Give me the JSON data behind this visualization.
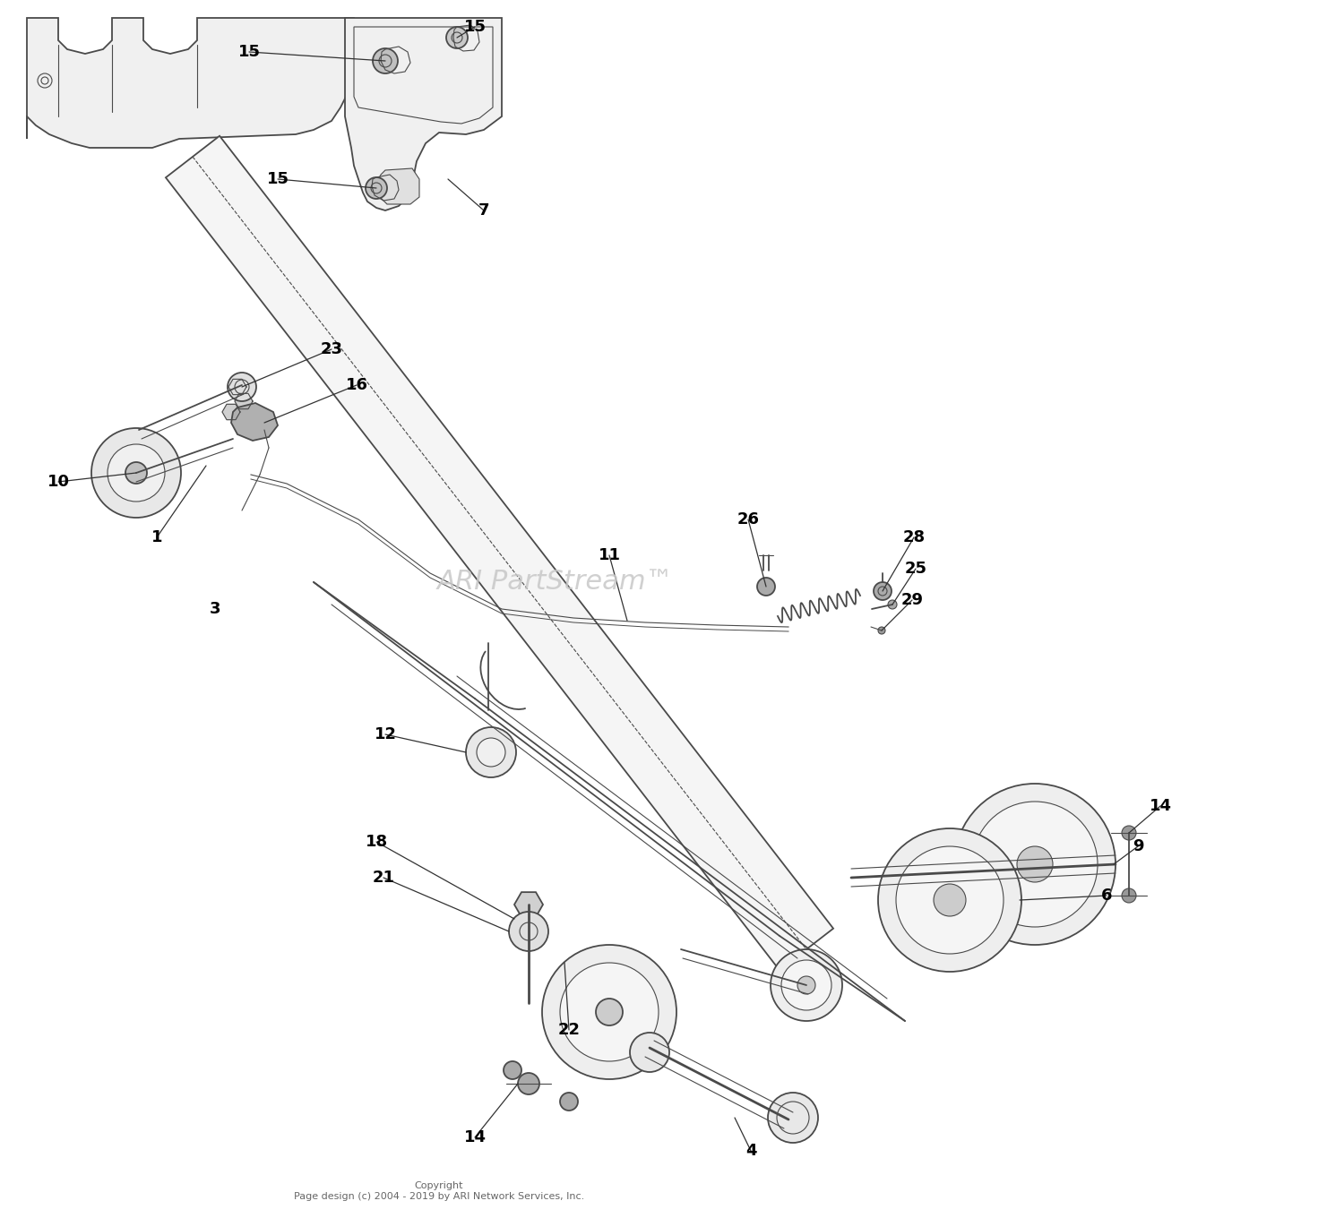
{
  "bg_color": "#ffffff",
  "line_color": "#4a4a4a",
  "label_color": "#000000",
  "watermark_text": "ARI PartStream™",
  "watermark_color": "#c8c8c8",
  "copyright_text": "Copyright\nPage design (c) 2004 - 2019 by ARI Network Services, Inc.",
  "fig_width": 15.0,
  "fig_height": 13.6,
  "dpi": 100
}
